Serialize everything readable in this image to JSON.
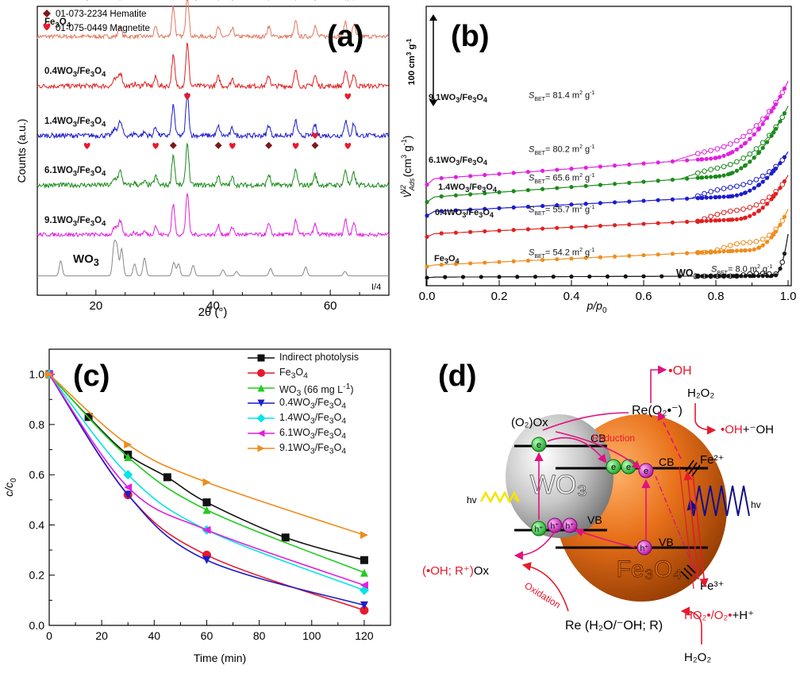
{
  "panels": {
    "a": "(a)",
    "b": "(b)",
    "c": "(c)",
    "d": "(d)"
  },
  "chart_data": [
    {
      "panel": "a",
      "type": "line",
      "xlabel": "2θ (°)",
      "ylabel": "Counts (a.u.)",
      "xlim": [
        10,
        70
      ],
      "xticks": [
        20,
        40,
        60
      ],
      "grid": false,
      "legend": {
        "placement": "top-left",
        "entries": [
          {
            "symbol": "diamond",
            "color": "#7a1a1a",
            "label": "01-073-2234 Hematite"
          },
          {
            "symbol": "heart",
            "color": "#e8192c",
            "label": "01-075-0449 Magnetite"
          }
        ]
      },
      "series": [
        {
          "name": "Fe3O4",
          "color": "#e07860",
          "offset": 7,
          "noise": 0.14
        },
        {
          "name": "0.4WO3/Fe3O4",
          "color": "#e02020",
          "offset": 5.8,
          "noise": 0.16
        },
        {
          "name": "1.4WO3/Fe3O4",
          "color": "#1c1ccc",
          "offset": 4.6,
          "noise": 0.16
        },
        {
          "name": "6.1WO3/Fe3O4",
          "color": "#1a8a1a",
          "offset": 3.4,
          "noise": 0.16
        },
        {
          "name": "9.1WO3/Fe3O4",
          "color": "#e020e0",
          "offset": 2.2,
          "noise": 0.13
        },
        {
          "name": "WO3",
          "color": "#888888",
          "offset": 1.2,
          "noise": 0.0
        }
      ],
      "peaks": {
        "iron_oxide": [
          [
            24.1,
            0.35
          ],
          [
            30.2,
            0.3
          ],
          [
            33.2,
            1.0
          ],
          [
            35.6,
            1.4
          ],
          [
            40.9,
            0.3
          ],
          [
            43.3,
            0.25
          ],
          [
            49.5,
            0.35
          ],
          [
            54.1,
            0.5
          ],
          [
            57.4,
            0.35
          ],
          [
            62.6,
            0.5
          ],
          [
            64.0,
            0.4
          ]
        ],
        "wo3": [
          [
            14.0,
            0.5
          ],
          [
            23.1,
            1.0
          ],
          [
            23.6,
            0.9
          ],
          [
            24.4,
            0.9
          ],
          [
            26.6,
            0.4
          ],
          [
            28.3,
            0.6
          ],
          [
            33.3,
            0.45
          ],
          [
            34.1,
            0.4
          ],
          [
            36.6,
            0.35
          ],
          [
            41.7,
            0.2
          ],
          [
            44.0,
            0.15
          ],
          [
            49.8,
            0.25
          ],
          [
            55.8,
            0.3
          ],
          [
            62.5,
            0.15
          ]
        ],
        "ref_w": 35.8
      },
      "markers": [
        {
          "type": "heart",
          "x": 18.5,
          "series": "Fe3O4"
        },
        {
          "type": "diamond",
          "x": 24.1,
          "series": "Fe3O4"
        },
        {
          "type": "diamond",
          "x": 33.2,
          "series": "Fe3O4"
        },
        {
          "type": "heart",
          "x": 35.6,
          "series": "Fe3O4"
        },
        {
          "type": "diamond",
          "x": 35.6,
          "series": "Fe3O4"
        },
        {
          "type": "diamond",
          "x": 40.9,
          "series": "Fe3O4"
        },
        {
          "type": "heart",
          "x": 37.1,
          "series": "Fe3O4"
        },
        {
          "type": "heart",
          "x": 43.3,
          "series": "Fe3O4"
        },
        {
          "type": "diamond",
          "x": 49.5,
          "series": "Fe3O4"
        },
        {
          "type": "diamond",
          "x": 54.1,
          "series": "Fe3O4"
        },
        {
          "type": "heart",
          "x": 54.1,
          "series": "Fe3O4"
        },
        {
          "type": "heart",
          "x": 57.4,
          "series": "Fe3O4"
        },
        {
          "type": "diamond",
          "x": 57.4,
          "series": "Fe3O4"
        },
        {
          "type": "diamond",
          "x": 62.6,
          "series": "Fe3O4"
        },
        {
          "type": "heart",
          "x": 63.0,
          "series": "Fe3O4"
        },
        {
          "type": "diamond",
          "x": 64.0,
          "series": "Fe3O4"
        },
        {
          "type": "heart",
          "x": 35.6,
          "series": "1.4WO3/Fe3O4"
        },
        {
          "type": "heart",
          "x": 63.0,
          "series": "1.4WO3/Fe3O4"
        },
        {
          "type": "heart",
          "x": 18.5,
          "series": "6.1WO3/Fe3O4"
        },
        {
          "type": "heart",
          "x": 30.2,
          "series": "6.1WO3/Fe3O4"
        },
        {
          "type": "diamond",
          "x": 33.2,
          "series": "6.1WO3/Fe3O4"
        },
        {
          "type": "diamond",
          "x": 40.9,
          "series": "6.1WO3/Fe3O4"
        },
        {
          "type": "heart",
          "x": 43.3,
          "series": "6.1WO3/Fe3O4"
        },
        {
          "type": "diamond",
          "x": 49.5,
          "series": "6.1WO3/Fe3O4"
        },
        {
          "type": "heart",
          "x": 54.1,
          "series": "6.1WO3/Fe3O4"
        },
        {
          "type": "diamond",
          "x": 57.4,
          "series": "6.1WO3/Fe3O4"
        },
        {
          "type": "heart",
          "x": 57.4,
          "series": "6.1WO3/Fe3O4"
        },
        {
          "type": "heart",
          "x": 63.0,
          "series": "6.1WO3/Fe3O4"
        }
      ],
      "series_labels": [
        {
          "html": "Fe<sub>3</sub>O<sub>4</sub>",
          "series": "Fe3O4"
        },
        {
          "html": "0.4WO<sub>3</sub>/Fe<sub>3</sub>O<sub>4</sub>",
          "series": "0.4WO3/Fe3O4"
        },
        {
          "html": "1.4WO<sub>3</sub>/Fe<sub>3</sub>O<sub>4</sub>",
          "series": "1.4WO3/Fe3O4"
        },
        {
          "html": "6.1WO<sub>3</sub>/Fe<sub>3</sub>O<sub>4</sub>",
          "series": "6.1WO3/Fe3O4"
        },
        {
          "html": "9.1WO<sub>3</sub>/Fe<sub>3</sub>O<sub>4</sub>",
          "series": "9.1WO3/Fe3O4"
        },
        {
          "html": "WO<sub>3</sub>",
          "series": "WO3"
        }
      ],
      "annotations": [
        "I/4"
      ]
    },
    {
      "panel": "b",
      "type": "line",
      "xlabel": "p/p0",
      "ylabel": "V_Ads^N2 (cm3 g-1)",
      "xlim": [
        0.0,
        1.0
      ],
      "xticks": [
        0.0,
        0.2,
        0.4,
        0.6,
        0.8,
        1.0
      ],
      "scale_bar": "100 cm3 g-1",
      "grid": false,
      "series": [
        {
          "name": "9.1WO3/Fe3O4",
          "color": "#e020e0",
          "base": 0.84,
          "slope": 0.2,
          "knee": 0.78,
          "rise": 0.55,
          "desGap": 0.07,
          "sbet": "81.4"
        },
        {
          "name": "6.1WO3/Fe3O4",
          "color": "#1a8a1a",
          "base": 0.7,
          "slope": 0.2,
          "knee": 0.8,
          "rise": 0.5,
          "desGap": 0.07,
          "sbet": "80.2"
        },
        {
          "name": "1.4WO3/Fe3O4",
          "color": "#1c1ccc",
          "base": 0.59,
          "slope": 0.14,
          "knee": 0.83,
          "rise": 0.32,
          "desGap": 0.07,
          "sbet": "65.6"
        },
        {
          "name": "0.4WO3/Fe3O4",
          "color": "#e02020",
          "base": 0.42,
          "slope": 0.13,
          "knee": 0.85,
          "rise": 0.32,
          "desGap": 0.07,
          "sbet": "55.7"
        },
        {
          "name": "Fe3O4",
          "color": "#f08c1c",
          "base": 0.18,
          "slope": 0.13,
          "knee": 0.89,
          "rise": 0.3,
          "desGap": 0.06,
          "sbet": "54.2"
        },
        {
          "name": "WO3",
          "color": "#111111",
          "base": 0.09,
          "slope": 0.01,
          "knee": 0.96,
          "rise": 0.32,
          "desGap": 0.02,
          "sbet": "8.0"
        }
      ],
      "series_labels": [
        {
          "html": "9.1WO<sub>3</sub>/Fe<sub>3</sub>O<sub>4</sub>",
          "series": "9.1WO3/Fe3O4"
        },
        {
          "html": "6.1WO<sub>3</sub>/Fe<sub>3</sub>O<sub>4</sub>",
          "series": "6.1WO3/Fe3O4"
        },
        {
          "html": "1.4WO<sub>3</sub>/Fe<sub>3</sub>O<sub>4</sub>",
          "series": "1.4WO3/Fe3O4"
        },
        {
          "html": "0.4WO<sub>3</sub>/Fe<sub>3</sub>O<sub>4</sub>",
          "series": "0.4WO3/Fe3O4"
        },
        {
          "html": "Fe<sub>3</sub>O<sub>4</sub>",
          "series": "Fe3O4"
        },
        {
          "html": "WO<sub>3</sub>",
          "series": "WO3"
        }
      ],
      "sbet_prefix": "S",
      "sbet_sub": "BET",
      "sbet_unit": "m",
      "sbet_sup": "2",
      "sbet_tail": " g"
    },
    {
      "panel": "c",
      "type": "line",
      "xlabel": "Time (min)",
      "ylabel": "c/c0",
      "xlim": [
        0,
        130
      ],
      "ylim": [
        0.0,
        1.1
      ],
      "xticks": [
        0,
        20,
        40,
        60,
        80,
        100,
        120
      ],
      "yticks": [
        0.0,
        0.2,
        0.4,
        0.6,
        0.8,
        1.0
      ],
      "grid": false,
      "legend": "top-right",
      "series": [
        {
          "name": "Indirect photolysis",
          "color": "#111111",
          "marker": "square",
          "x": [
            0,
            15,
            30,
            45,
            60,
            90,
            120
          ],
          "y": [
            1.0,
            0.83,
            0.68,
            0.59,
            0.49,
            0.35,
            0.26
          ],
          "legend_html": "Indirect photolysis"
        },
        {
          "name": "Fe3O4",
          "color": "#e8192c",
          "marker": "circle",
          "x": [
            0,
            30,
            60,
            120
          ],
          "y": [
            1.0,
            0.52,
            0.28,
            0.06
          ],
          "legend_html": "Fe<sub>3</sub>O<sub>4</sub>"
        },
        {
          "name": "WO3 (66 mg L-1)",
          "color": "#22cc22",
          "marker": "triangle-up",
          "x": [
            0,
            30,
            60,
            120
          ],
          "y": [
            1.0,
            0.67,
            0.46,
            0.21
          ],
          "legend_html": "WO<sub>3</sub> (66 mg L<sup>-1</sup>)"
        },
        {
          "name": "0.4WO3/Fe3O4",
          "color": "#1c1ccc",
          "marker": "triangle-down",
          "x": [
            0,
            30,
            60,
            120
          ],
          "y": [
            1.0,
            0.52,
            0.26,
            0.08
          ],
          "legend_html": "0.4WO<sub>3</sub>/Fe<sub>3</sub>O<sub>4</sub>"
        },
        {
          "name": "1.4WO3/Fe3O4",
          "color": "#00e5e5",
          "marker": "diamond",
          "x": [
            0,
            30,
            60,
            120
          ],
          "y": [
            1.0,
            0.6,
            0.38,
            0.14
          ],
          "legend_html": "1.4WO<sub>3</sub>/Fe<sub>3</sub>O<sub>4</sub>"
        },
        {
          "name": "6.1WO3/Fe3O4",
          "color": "#e020e0",
          "marker": "triangle-left",
          "x": [
            0,
            30,
            60,
            120
          ],
          "y": [
            1.0,
            0.55,
            0.38,
            0.16
          ],
          "legend_html": "6.1WO<sub>3</sub>/Fe<sub>3</sub>O<sub>4</sub>"
        },
        {
          "name": "9.1WO3/Fe3O4",
          "color": "#f08c1c",
          "marker": "triangle-right",
          "x": [
            0,
            30,
            60,
            120
          ],
          "y": [
            1.0,
            0.72,
            0.57,
            0.36
          ],
          "legend_html": "9.1WO<sub>3</sub>/Fe<sub>3</sub>O<sub>4</sub>"
        }
      ]
    }
  ],
  "diagram": {
    "labels": {
      "oh": "•OH",
      "h2o2_top": "H₂O₂",
      "oh_pair_red": "•OH",
      "oh_pair_black": "+⁻OH",
      "o2ox": "(O₂)Ox",
      "reduction": "Reduction",
      "re_o2": "Re(O₂•⁻)",
      "fe2": "Fe²⁺",
      "cb": "CB",
      "vb": "VB",
      "hv": "hv",
      "wo3": "WO₃",
      "fe3o4": "Fe₃O₄",
      "e": "e",
      "h": "h⁺",
      "oh_r_red": "(•OH; R⁺)",
      "oh_r_black": "Ox",
      "oxidation": "Oxidation",
      "fe3": "Fe³⁺",
      "ho2_red": "HO₂•/O₂•",
      "ho2_black": "+H⁺",
      "re_h2o": "Re (H₂O/⁻OH; R)",
      "h2o2_bottom": "H₂O₂"
    },
    "colors": {
      "orange": "#e8711a",
      "magenta": "#e0117f",
      "red": "#e8192c",
      "green": "#2ecc40",
      "purple": "#c81ecb",
      "navy": "#10108a",
      "yellow": "#f5e400"
    }
  }
}
